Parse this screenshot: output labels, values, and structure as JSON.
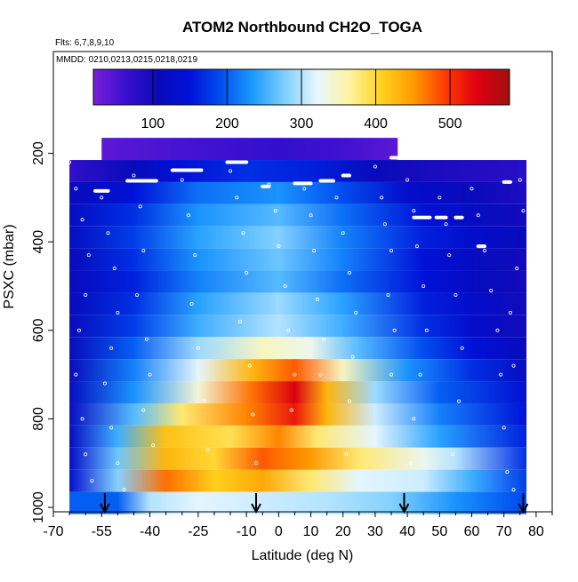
{
  "chart_data": {
    "type": "heatmap",
    "title": "ATOM2 Northbound CH2O_TOGA",
    "flights_note": "Flts: 6,7,8,9,10",
    "dates_note": "MMDD: 0210,0213,0215,0218,0219",
    "xlabel": "Latitude (deg N)",
    "ylabel": "PSXC (mbar)",
    "xlim": [
      -70,
      85
    ],
    "ylim": [
      1010,
      -30
    ],
    "x_ticks": [
      -70,
      -55,
      -40,
      -25,
      -10,
      0,
      10,
      20,
      30,
      40,
      50,
      60,
      70,
      80
    ],
    "x_tick_labels": [
      "-70",
      "-55",
      "-40",
      "-25",
      "-10",
      "0",
      "10",
      "20",
      "30",
      "40",
      "50",
      "60",
      "70",
      "80"
    ],
    "y_ticks": [
      200,
      400,
      600,
      800,
      1000
    ],
    "y_tick_labels": [
      "200",
      "400",
      "600",
      "800",
      "1000"
    ],
    "colorbar": {
      "range": [
        20,
        580
      ],
      "ticks": [
        100,
        200,
        300,
        400,
        500
      ],
      "tick_labels": [
        "100",
        "200",
        "300",
        "400",
        "500"
      ],
      "colors": [
        "#7a1fd8",
        "#3a10d0",
        "#0a0ab8",
        "#0010d8",
        "#0050f0",
        "#1e9cff",
        "#80d0ff",
        "#e8f6ff",
        "#fff4a0",
        "#ffd21e",
        "#ff9a00",
        "#ff3a00",
        "#e00010",
        "#a01010"
      ]
    },
    "pressure_levels": [
      190,
      240,
      290,
      340,
      390,
      440,
      490,
      540,
      590,
      640,
      690,
      740,
      790,
      840,
      890,
      940,
      990
    ],
    "lat_range": [
      -65,
      77
    ],
    "lat_range_top": [
      -55,
      37
    ],
    "ch2o_field": [
      {
        "p": 190,
        "lat_values": [
          [
            -60,
            40
          ],
          [
            -40,
            50
          ],
          [
            -20,
            60
          ],
          [
            0,
            70
          ],
          [
            20,
            60
          ],
          [
            37,
            40
          ]
        ]
      },
      {
        "p": 240,
        "lat_values": [
          [
            -65,
            70
          ],
          [
            -45,
            110
          ],
          [
            -30,
            150
          ],
          [
            -10,
            170
          ],
          [
            10,
            160
          ],
          [
            30,
            110
          ],
          [
            50,
            90
          ],
          [
            75,
            80
          ]
        ]
      },
      {
        "p": 290,
        "lat_values": [
          [
            -65,
            110
          ],
          [
            -45,
            150
          ],
          [
            -25,
            210
          ],
          [
            0,
            230
          ],
          [
            20,
            190
          ],
          [
            40,
            130
          ],
          [
            60,
            110
          ],
          [
            77,
            90
          ]
        ]
      },
      {
        "p": 340,
        "lat_values": [
          [
            -65,
            120
          ],
          [
            -45,
            170
          ],
          [
            -25,
            230
          ],
          [
            0,
            260
          ],
          [
            20,
            210
          ],
          [
            45,
            150
          ],
          [
            60,
            120
          ],
          [
            77,
            100
          ]
        ]
      },
      {
        "p": 390,
        "lat_values": [
          [
            -65,
            120
          ],
          [
            -45,
            180
          ],
          [
            -25,
            240
          ],
          [
            0,
            280
          ],
          [
            20,
            220
          ],
          [
            45,
            160
          ],
          [
            60,
            130
          ],
          [
            77,
            110
          ]
        ]
      },
      {
        "p": 440,
        "lat_values": [
          [
            -65,
            110
          ],
          [
            -45,
            170
          ],
          [
            -25,
            230
          ],
          [
            0,
            270
          ],
          [
            20,
            220
          ],
          [
            45,
            150
          ],
          [
            60,
            120
          ],
          [
            77,
            100
          ]
        ]
      },
      {
        "p": 490,
        "lat_values": [
          [
            -65,
            110
          ],
          [
            -45,
            160
          ],
          [
            -25,
            220
          ],
          [
            0,
            260
          ],
          [
            20,
            210
          ],
          [
            45,
            150
          ],
          [
            60,
            120
          ],
          [
            77,
            100
          ]
        ]
      },
      {
        "p": 540,
        "lat_values": [
          [
            -65,
            110
          ],
          [
            -45,
            170
          ],
          [
            -25,
            240
          ],
          [
            0,
            290
          ],
          [
            20,
            240
          ],
          [
            45,
            160
          ],
          [
            60,
            130
          ],
          [
            77,
            100
          ]
        ]
      },
      {
        "p": 590,
        "lat_values": [
          [
            -65,
            110
          ],
          [
            -45,
            180
          ],
          [
            -25,
            250
          ],
          [
            0,
            300
          ],
          [
            20,
            250
          ],
          [
            45,
            170
          ],
          [
            60,
            130
          ],
          [
            77,
            100
          ]
        ]
      },
      {
        "p": 640,
        "lat_values": [
          [
            -65,
            110
          ],
          [
            -45,
            200
          ],
          [
            -25,
            290
          ],
          [
            -5,
            350
          ],
          [
            10,
            330
          ],
          [
            25,
            260
          ],
          [
            45,
            190
          ],
          [
            60,
            150
          ],
          [
            77,
            110
          ]
        ]
      },
      {
        "p": 690,
        "lat_values": [
          [
            -65,
            110
          ],
          [
            -45,
            220
          ],
          [
            -25,
            320
          ],
          [
            -8,
            430
          ],
          [
            5,
            480
          ],
          [
            20,
            350
          ],
          [
            40,
            230
          ],
          [
            60,
            170
          ],
          [
            77,
            120
          ]
        ]
      },
      {
        "p": 740,
        "lat_values": [
          [
            -65,
            120
          ],
          [
            -45,
            230
          ],
          [
            -25,
            340
          ],
          [
            -8,
            470
          ],
          [
            5,
            540
          ],
          [
            15,
            430
          ],
          [
            30,
            290
          ],
          [
            50,
            200
          ],
          [
            77,
            140
          ]
        ]
      },
      {
        "p": 790,
        "lat_values": [
          [
            -65,
            120
          ],
          [
            -45,
            260
          ],
          [
            -30,
            380
          ],
          [
            -10,
            460
          ],
          [
            5,
            520
          ],
          [
            15,
            430
          ],
          [
            30,
            310
          ],
          [
            50,
            220
          ],
          [
            77,
            150
          ]
        ]
      },
      {
        "p": 840,
        "lat_values": [
          [
            -65,
            120
          ],
          [
            -50,
            250
          ],
          [
            -35,
            420
          ],
          [
            -15,
            390
          ],
          [
            0,
            460
          ],
          [
            12,
            380
          ],
          [
            30,
            320
          ],
          [
            50,
            240
          ],
          [
            77,
            160
          ]
        ]
      },
      {
        "p": 890,
        "lat_values": [
          [
            -65,
            130
          ],
          [
            -50,
            270
          ],
          [
            -35,
            430
          ],
          [
            -20,
            400
          ],
          [
            -5,
            480
          ],
          [
            10,
            450
          ],
          [
            25,
            380
          ],
          [
            45,
            330
          ],
          [
            55,
            300
          ],
          [
            77,
            170
          ]
        ]
      },
      {
        "p": 940,
        "lat_values": [
          [
            -65,
            140
          ],
          [
            -50,
            280
          ],
          [
            -35,
            470
          ],
          [
            -20,
            410
          ],
          [
            -5,
            440
          ],
          [
            10,
            380
          ],
          [
            25,
            320
          ],
          [
            45,
            310
          ],
          [
            60,
            250
          ],
          [
            77,
            180
          ]
        ]
      },
      {
        "p": 990,
        "lat_values": [
          [
            -50,
            200
          ],
          [
            -40,
            300
          ],
          [
            -25,
            320
          ],
          [
            -5,
            310
          ],
          [
            15,
            300
          ],
          [
            35,
            280
          ],
          [
            55,
            230
          ],
          [
            75,
            190
          ]
        ]
      }
    ],
    "flight_track_points": [
      [
        -65,
        220
      ],
      [
        -63,
        280
      ],
      [
        -61,
        350
      ],
      [
        -59,
        430
      ],
      [
        -60,
        520
      ],
      [
        -62,
        600
      ],
      [
        -63,
        700
      ],
      [
        -61,
        800
      ],
      [
        -60,
        880
      ],
      [
        -58,
        940
      ],
      [
        -55,
        300
      ],
      [
        -53,
        380
      ],
      [
        -51,
        460
      ],
      [
        -50,
        560
      ],
      [
        -52,
        640
      ],
      [
        -54,
        720
      ],
      [
        -52,
        820
      ],
      [
        -50,
        900
      ],
      [
        -48,
        960
      ],
      [
        -45,
        250
      ],
      [
        -43,
        320
      ],
      [
        -42,
        420
      ],
      [
        -44,
        520
      ],
      [
        -41,
        620
      ],
      [
        -40,
        700
      ],
      [
        -42,
        780
      ],
      [
        -39,
        860
      ],
      [
        -30,
        260
      ],
      [
        -28,
        340
      ],
      [
        -26,
        430
      ],
      [
        -27,
        540
      ],
      [
        -25,
        640
      ],
      [
        -23,
        760
      ],
      [
        -22,
        870
      ],
      [
        -15,
        240
      ],
      [
        -13,
        300
      ],
      [
        -11,
        380
      ],
      [
        -10,
        470
      ],
      [
        -12,
        580
      ],
      [
        -9,
        680
      ],
      [
        -8,
        790
      ],
      [
        -7,
        900
      ],
      [
        -3,
        270
      ],
      [
        -1,
        330
      ],
      [
        0,
        410
      ],
      [
        2,
        500
      ],
      [
        3,
        600
      ],
      [
        5,
        700
      ],
      [
        4,
        780
      ],
      [
        8,
        280
      ],
      [
        10,
        340
      ],
      [
        11,
        420
      ],
      [
        12,
        530
      ],
      [
        14,
        620
      ],
      [
        13,
        700
      ],
      [
        18,
        300
      ],
      [
        20,
        380
      ],
      [
        22,
        470
      ],
      [
        24,
        560
      ],
      [
        23,
        660
      ],
      [
        22,
        760
      ],
      [
        21,
        880
      ],
      [
        30,
        230
      ],
      [
        32,
        300
      ],
      [
        33,
        360
      ],
      [
        35,
        420
      ],
      [
        34,
        520
      ],
      [
        36,
        600
      ],
      [
        35,
        700
      ],
      [
        40,
        260
      ],
      [
        42,
        330
      ],
      [
        43,
        410
      ],
      [
        45,
        500
      ],
      [
        46,
        600
      ],
      [
        44,
        700
      ],
      [
        42,
        800
      ],
      [
        41,
        900
      ],
      [
        50,
        300
      ],
      [
        52,
        360
      ],
      [
        53,
        430
      ],
      [
        55,
        520
      ],
      [
        57,
        640
      ],
      [
        56,
        760
      ],
      [
        54,
        880
      ],
      [
        60,
        280
      ],
      [
        62,
        340
      ],
      [
        64,
        420
      ],
      [
        66,
        510
      ],
      [
        68,
        600
      ],
      [
        69,
        700
      ],
      [
        70,
        820
      ],
      [
        71,
        920
      ],
      [
        73,
        960
      ],
      [
        75,
        260
      ],
      [
        76,
        330
      ],
      [
        74,
        460
      ],
      [
        72,
        560
      ],
      [
        73,
        680
      ]
    ],
    "saturated_segments": [
      {
        "lat": [
          -47,
          -38
        ],
        "p": 262
      },
      {
        "lat": [
          -33,
          -24
        ],
        "p": 238
      },
      {
        "lat": [
          -16,
          -10
        ],
        "p": 220
      },
      {
        "lat": [
          -57,
          -53
        ],
        "p": 285
      },
      {
        "lat": [
          -5,
          -3
        ],
        "p": 275
      },
      {
        "lat": [
          5,
          10
        ],
        "p": 268
      },
      {
        "lat": [
          13,
          17
        ],
        "p": 262
      },
      {
        "lat": [
          20,
          22
        ],
        "p": 250
      },
      {
        "lat": [
          35,
          37
        ],
        "p": 210
      },
      {
        "lat": [
          42,
          47
        ],
        "p": 345
      },
      {
        "lat": [
          49,
          52
        ],
        "p": 345
      },
      {
        "lat": [
          55,
          57
        ],
        "p": 345
      },
      {
        "lat": [
          62,
          64
        ],
        "p": 410
      },
      {
        "lat": [
          70,
          72
        ],
        "p": 265
      }
    ],
    "arrow_markers_lat": [
      -54,
      -7,
      39,
      76
    ]
  }
}
